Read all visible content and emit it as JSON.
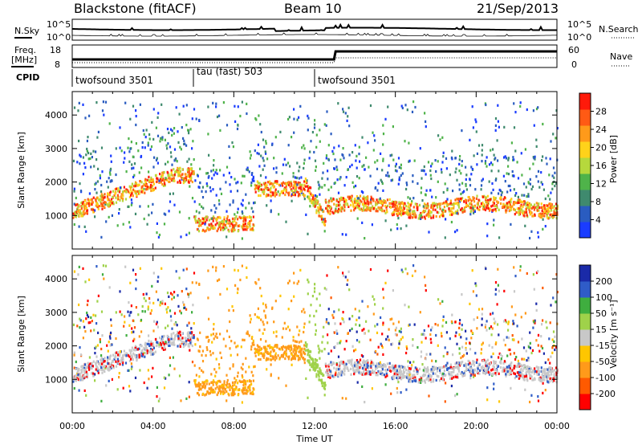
{
  "header": {
    "left": "Blackstone (fitACF)",
    "center": "Beam 10",
    "right": "21/Sep/2013"
  },
  "labels": {
    "nsky": "N.Sky",
    "nsearch": "N.Search",
    "freq_line1": "Freq.",
    "freq_line2": "[MHz]",
    "nave": "Nave",
    "cpid": "CPID",
    "noise_left_top": "10^5",
    "noise_left_bottom": "10^0",
    "noise_right_top": "10^5",
    "noise_right_bottom": "10^0",
    "freq_top": "18",
    "freq_bottom": "8",
    "nave_top": "60",
    "nave_bottom": "0"
  },
  "cpid_segments": [
    {
      "label": "twofsound 3501",
      "start_hour": 0
    },
    {
      "label": "tau (fast) 503",
      "start_hour": 6
    },
    {
      "label": "twofsound 3501",
      "start_hour": 12
    }
  ],
  "colors": {
    "power": [
      "#1a3cff",
      "#2a5cc0",
      "#3f8a6e",
      "#4fb34a",
      "#b6d83c",
      "#ffd21a",
      "#ff9a1a",
      "#ff5a14",
      "#ff1a0a"
    ],
    "velocity": [
      "#ff0000",
      "#ff5a00",
      "#ff9a1a",
      "#ffc600",
      "#c8c8c8",
      "#9fd24a",
      "#3fae3f",
      "#2f5cc8",
      "#1a2aa8"
    ]
  },
  "chart_data": [
    {
      "type": "heatmap",
      "title": "",
      "ylabel": "Slant Range [km]",
      "xlabel": "",
      "x_ticks": [
        "00:00",
        "04:00",
        "08:00",
        "12:00",
        "16:00",
        "20:00",
        "00:00"
      ],
      "xlim_hours": [
        0,
        24
      ],
      "ylim": [
        0,
        4700
      ],
      "y_ticks": [
        1000,
        2000,
        3000,
        4000
      ],
      "colorbar": {
        "label": "Power [dB]",
        "ticks": [
          "28",
          "24",
          "20",
          "16",
          "12",
          "8",
          "4"
        ],
        "range": [
          0,
          30
        ]
      }
    },
    {
      "type": "heatmap",
      "title": "",
      "ylabel": "Slant Range [km]",
      "xlabel": "Time UT",
      "x_ticks": [
        "00:00",
        "04:00",
        "08:00",
        "12:00",
        "16:00",
        "20:00",
        "00:00"
      ],
      "xlim_hours": [
        0,
        24
      ],
      "ylim": [
        0,
        4700
      ],
      "y_ticks": [
        1000,
        2000,
        3000,
        4000
      ],
      "colorbar": {
        "label": "Velocity [m s⁻¹]",
        "ticks": [
          "200",
          "100",
          "50",
          "15",
          "-15",
          "-50",
          "-100",
          "-200"
        ],
        "range": [
          -250,
          250
        ]
      }
    }
  ]
}
